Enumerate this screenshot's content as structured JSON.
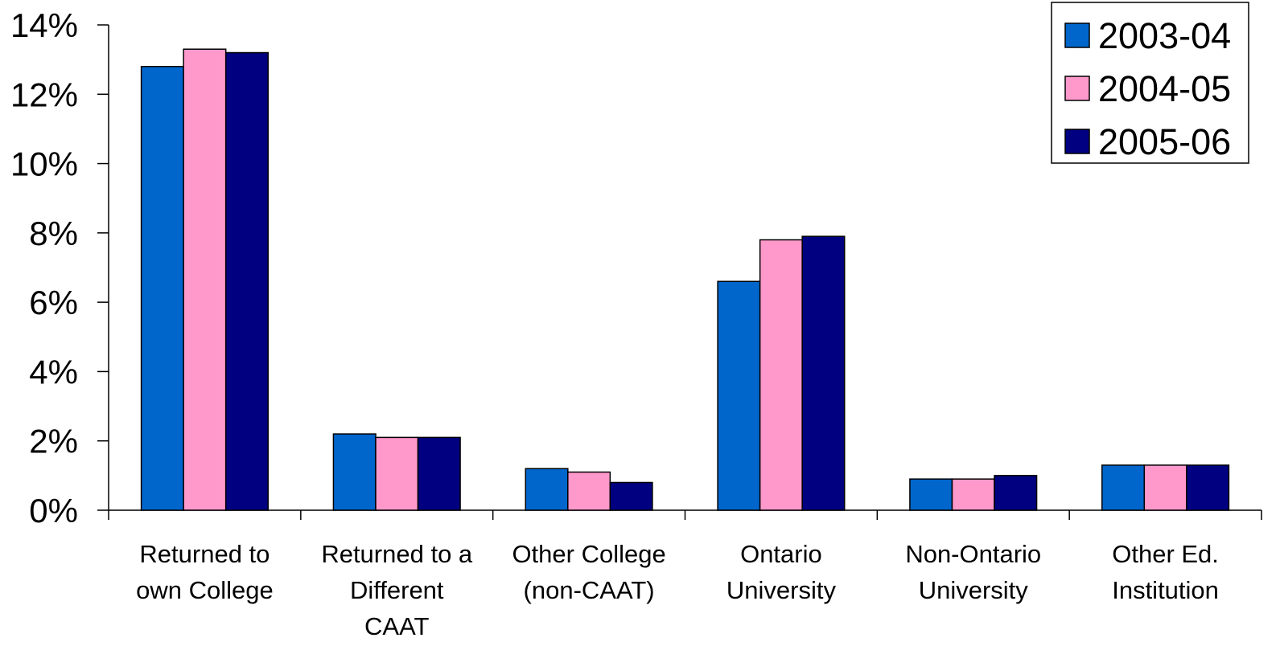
{
  "chart_data": {
    "type": "bar",
    "categories": [
      [
        "Returned to",
        "own College"
      ],
      [
        "Returned to a",
        "Different",
        "CAAT"
      ],
      [
        "Other College",
        "(non-CAAT)"
      ],
      [
        "Ontario",
        "University"
      ],
      [
        "Non-Ontario",
        "University"
      ],
      [
        "Other Ed.",
        "Institution"
      ]
    ],
    "series": [
      {
        "name": "2003-04",
        "color": "#0066CC",
        "values": [
          12.8,
          2.2,
          1.2,
          6.6,
          0.9,
          1.3
        ]
      },
      {
        "name": "2004-05",
        "color": "#FF99CC",
        "values": [
          13.3,
          2.1,
          1.1,
          7.8,
          0.9,
          1.3
        ]
      },
      {
        "name": "2005-06",
        "color": "#000080",
        "values": [
          13.2,
          2.1,
          0.8,
          7.9,
          1.0,
          1.3
        ]
      }
    ],
    "y_ticks": [
      "0%",
      "2%",
      "4%",
      "6%",
      "8%",
      "10%",
      "12%",
      "14%"
    ],
    "ylim": [
      0,
      14
    ],
    "title": "",
    "xlabel": "",
    "ylabel": "",
    "legend": "top-right",
    "grid": false
  }
}
